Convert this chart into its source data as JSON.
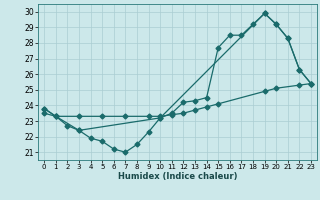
{
  "xlabel": "Humidex (Indice chaleur)",
  "bg_color": "#cce8ea",
  "grid_color": "#aacdd2",
  "line_color": "#1a6b6b",
  "xlim": [
    -0.5,
    23.5
  ],
  "ylim": [
    20.5,
    30.5
  ],
  "xticks": [
    0,
    1,
    2,
    3,
    4,
    5,
    6,
    7,
    8,
    9,
    10,
    11,
    12,
    13,
    14,
    15,
    16,
    17,
    18,
    19,
    20,
    21,
    22,
    23
  ],
  "yticks": [
    21,
    22,
    23,
    24,
    25,
    26,
    27,
    28,
    29,
    30
  ],
  "curve_dip_x": [
    0,
    1,
    2,
    3,
    4,
    5,
    6,
    7,
    8,
    9,
    10,
    19,
    20,
    21,
    22,
    23
  ],
  "curve_dip_y": [
    23.8,
    23.3,
    22.7,
    22.4,
    21.9,
    21.7,
    21.2,
    21.0,
    21.5,
    22.3,
    23.2,
    29.9,
    29.2,
    28.3,
    26.3,
    25.4
  ],
  "curve_peak_x": [
    0,
    1,
    3,
    10,
    11,
    12,
    13,
    14,
    15,
    16,
    17,
    18,
    19,
    20,
    21,
    22,
    23
  ],
  "curve_peak_y": [
    23.8,
    23.3,
    22.4,
    23.2,
    23.5,
    24.2,
    24.3,
    24.5,
    27.7,
    28.5,
    28.5,
    29.2,
    29.9,
    29.2,
    28.3,
    26.3,
    25.4
  ],
  "curve_diag_x": [
    0,
    1,
    3,
    5,
    7,
    9,
    10,
    11,
    12,
    13,
    14,
    15,
    19,
    20,
    22,
    23
  ],
  "curve_diag_y": [
    23.5,
    23.3,
    23.3,
    23.3,
    23.3,
    23.3,
    23.3,
    23.4,
    23.5,
    23.7,
    23.9,
    24.1,
    24.9,
    25.1,
    25.3,
    25.4
  ]
}
